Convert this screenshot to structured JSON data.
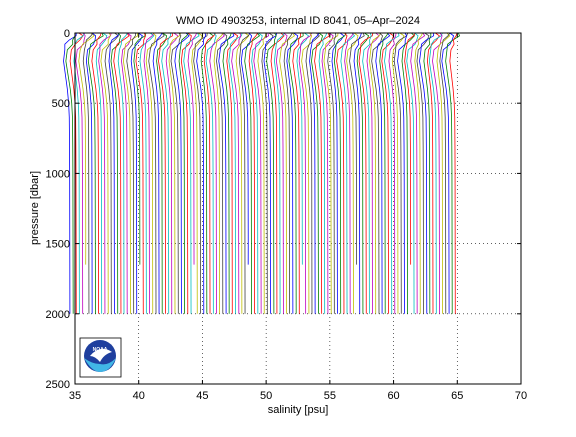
{
  "chart_data": {
    "type": "line",
    "title": "WMO ID 4903253, internal ID 8041, 05–Apr–2024",
    "xlabel": "salinity [psu]",
    "ylabel": "pressure [dbar]",
    "xlim": [
      35,
      70
    ],
    "ylim": [
      0,
      2500
    ],
    "y_reversed": true,
    "xticks": [
      35,
      40,
      45,
      50,
      55,
      60,
      65,
      70
    ],
    "yticks": [
      0,
      500,
      1000,
      1500,
      2000,
      2500
    ],
    "grid": "dotted",
    "legend": "none",
    "offset_step": 0.25,
    "profile_count": 122,
    "colors": [
      "#0000ff",
      "#008000",
      "#ff0000",
      "#00bfbf",
      "#bf00bf",
      "#bfbf00",
      "#404040"
    ],
    "profile_shape": {
      "pressure": [
        0,
        20,
        50,
        80,
        120,
        200,
        300,
        400,
        500,
        600,
        800,
        1000,
        1500,
        2000
      ],
      "salinity_offset": [
        0.3,
        0.4,
        0.1,
        -0.1,
        -0.35,
        -0.45,
        -0.3,
        -0.15,
        -0.05,
        0.0,
        0.02,
        0.03,
        0.04,
        0.05
      ]
    },
    "base_salinity_first": 34.55,
    "max_pressure": 2000,
    "logo": {
      "text": "NOAA",
      "colors": [
        "#1f3f9e",
        "#41b6e6",
        "#ffffff"
      ]
    }
  }
}
